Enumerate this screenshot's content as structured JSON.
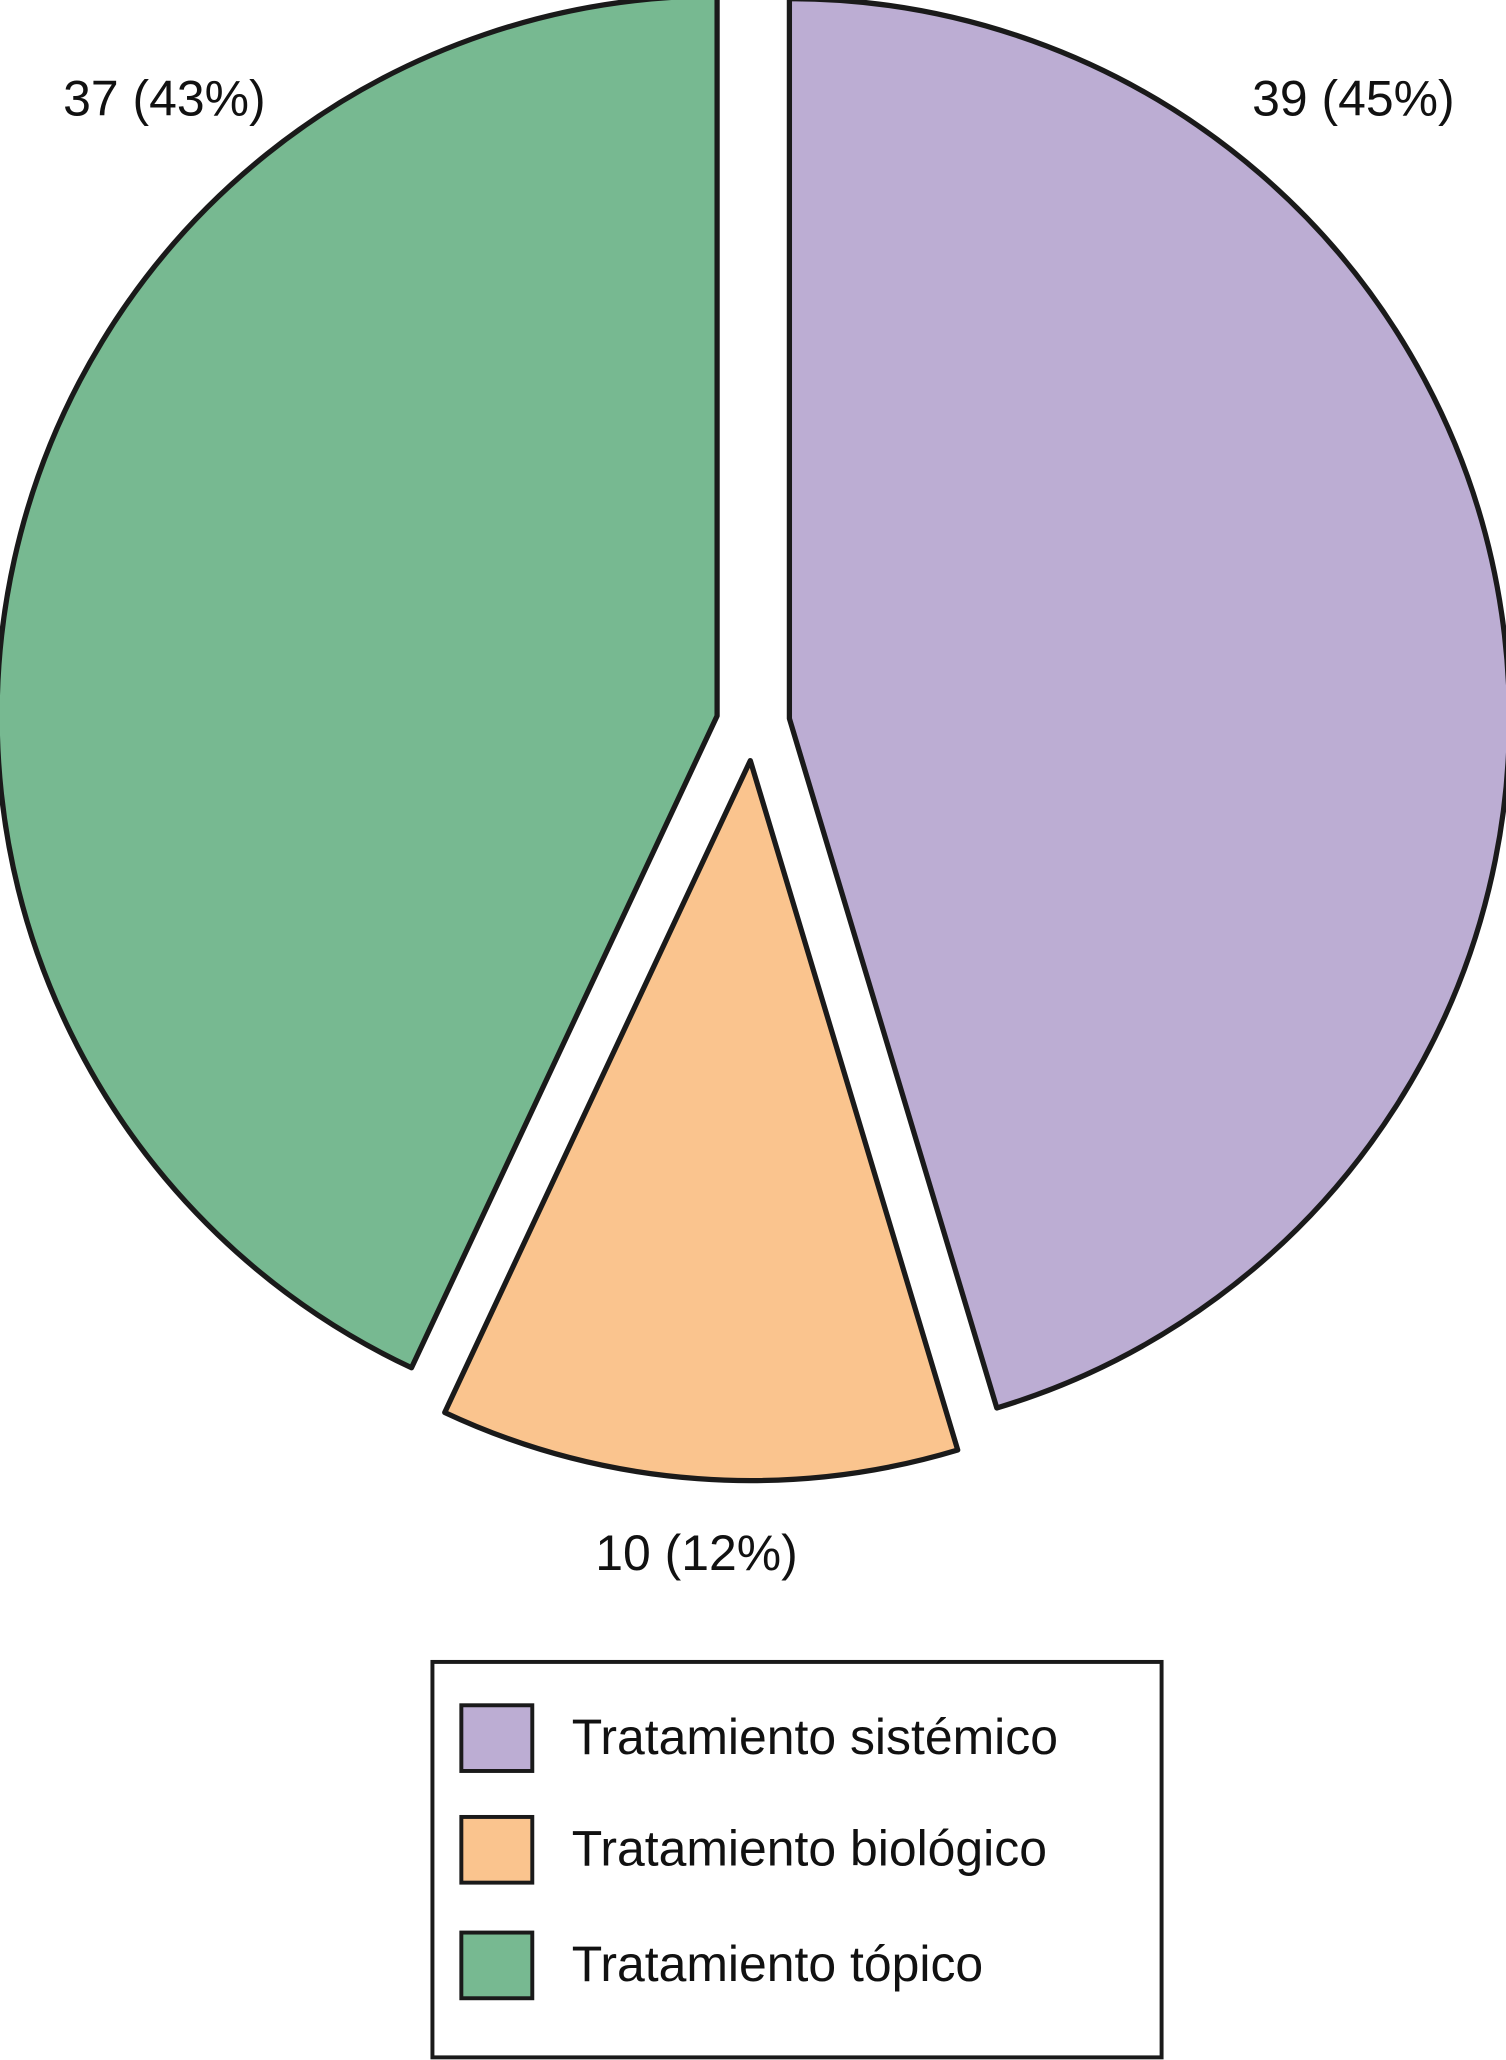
{
  "chart_data": {
    "type": "pie",
    "categories": [
      "Tratamiento sistémico",
      "Tratamiento biológico",
      "Tratamiento tópico"
    ],
    "values": [
      39,
      10,
      37
    ],
    "value_labels": [
      "39 (45%)",
      "10 (12%)",
      "37 (43%)"
    ],
    "colors": [
      "#bcadd3",
      "#fac48e",
      "#77b991"
    ]
  }
}
